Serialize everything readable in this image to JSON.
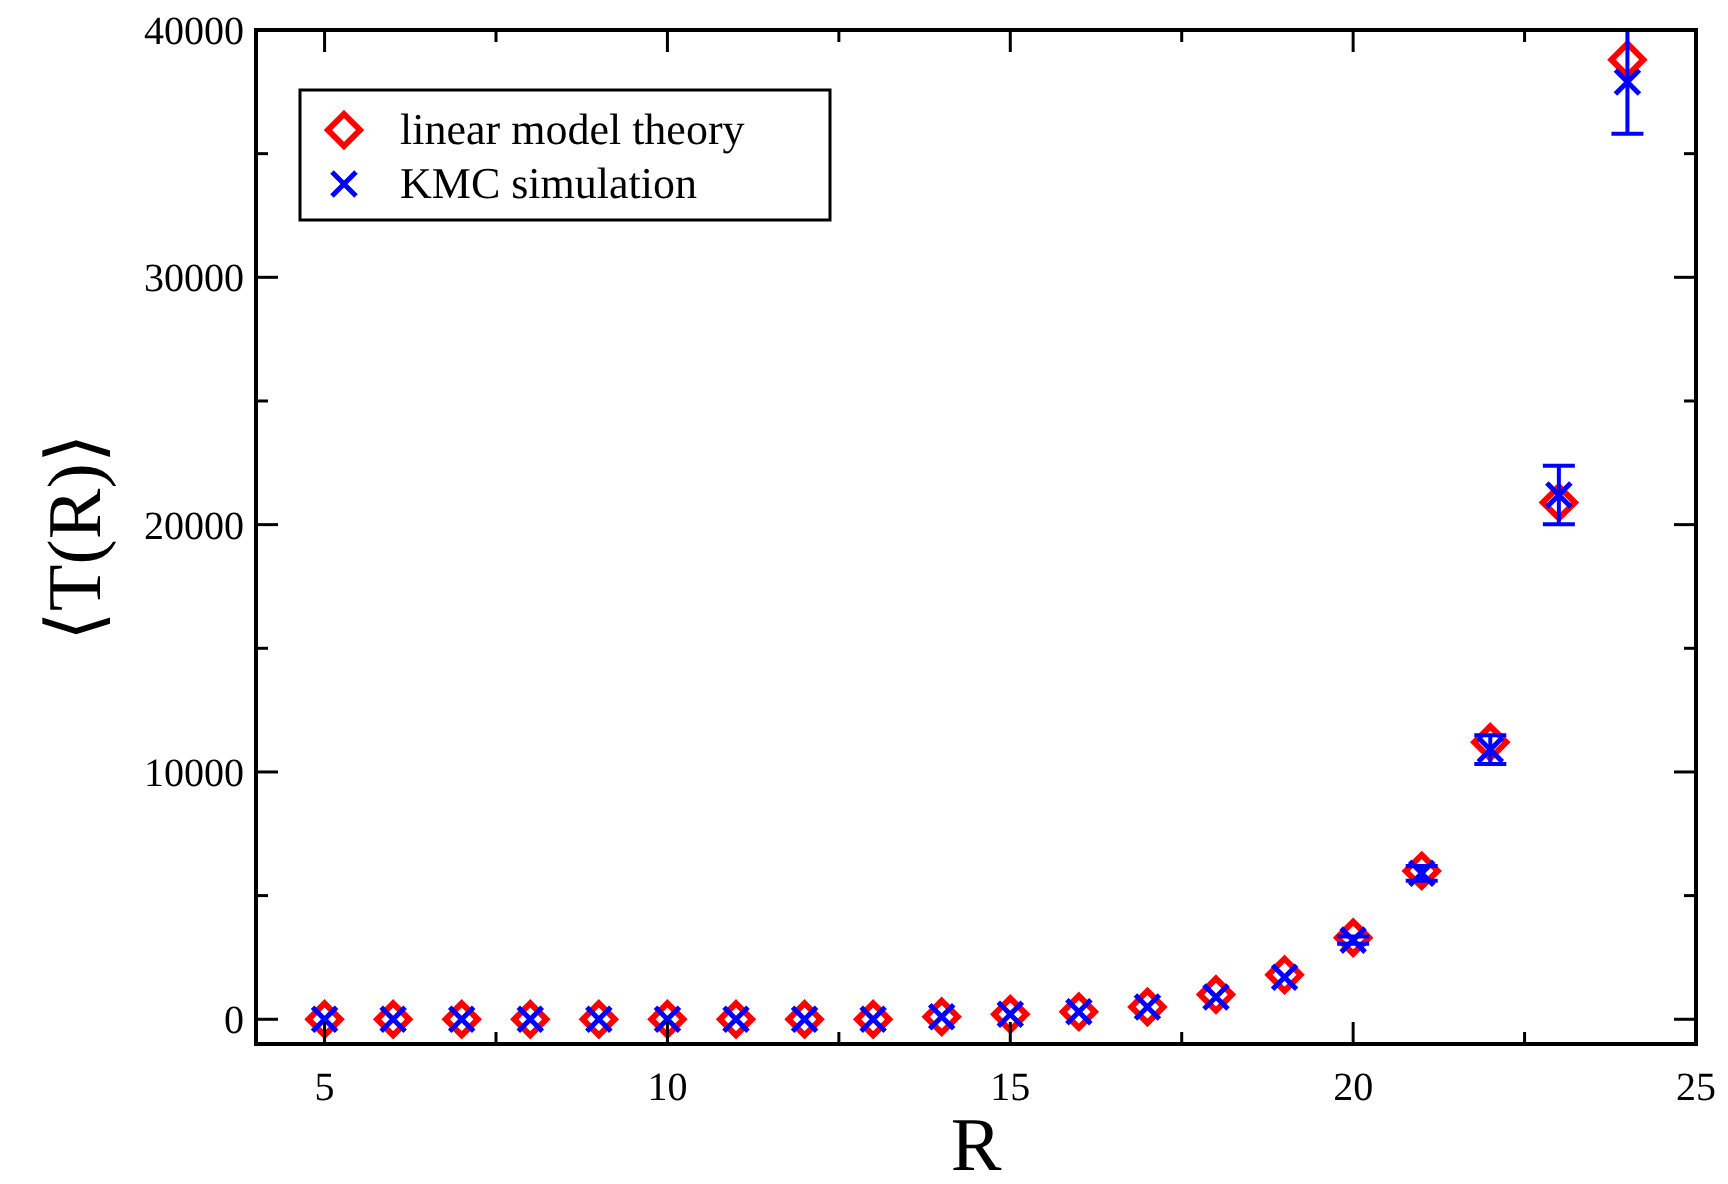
{
  "chart_data": {
    "type": "scatter",
    "xlabel": "R",
    "ylabel": "⟨T(R)⟩",
    "x": [
      5,
      6,
      7,
      8,
      9,
      10,
      11,
      12,
      13,
      14,
      15,
      16,
      17,
      18,
      19,
      20,
      21,
      22,
      23,
      24
    ],
    "series": [
      {
        "name": "linear model theory",
        "color": "#ff0000",
        "marker": "diamond",
        "values": [
          0,
          0,
          0,
          0,
          0,
          0,
          0,
          0,
          0,
          100,
          200,
          300,
          500,
          1000,
          1800,
          3300,
          6000,
          11200,
          20900,
          38800
        ]
      },
      {
        "name": "KMC simulation",
        "color": "#0000ff",
        "marker": "cross",
        "values": [
          0,
          0,
          0,
          0,
          0,
          0,
          0,
          0,
          0,
          100,
          200,
          300,
          500,
          900,
          1700,
          3200,
          5900,
          10900,
          21200,
          37900
        ],
        "errors": [
          null,
          null,
          null,
          null,
          null,
          null,
          null,
          null,
          null,
          null,
          null,
          null,
          null,
          null,
          null,
          150,
          300,
          580,
          1180,
          2100
        ]
      }
    ],
    "xlim": [
      4,
      25
    ],
    "xticks": [
      5,
      {
        "value": 7.5,
        "label": null
      },
      10,
      {
        "value": 12.5,
        "label": null
      },
      15,
      {
        "value": 17.5,
        "label": null
      },
      20,
      {
        "value": 22.5,
        "label": null
      },
      25
    ],
    "ylim": [
      -1000,
      40000
    ],
    "yticks": [
      0,
      {
        "value": 5000,
        "label": null
      },
      10000,
      {
        "value": 15000,
        "label": null
      },
      20000,
      {
        "value": 25000,
        "label": null
      },
      30000,
      {
        "value": 35000,
        "label": null
      },
      40000
    ],
    "grid": false,
    "legend": "top left"
  }
}
